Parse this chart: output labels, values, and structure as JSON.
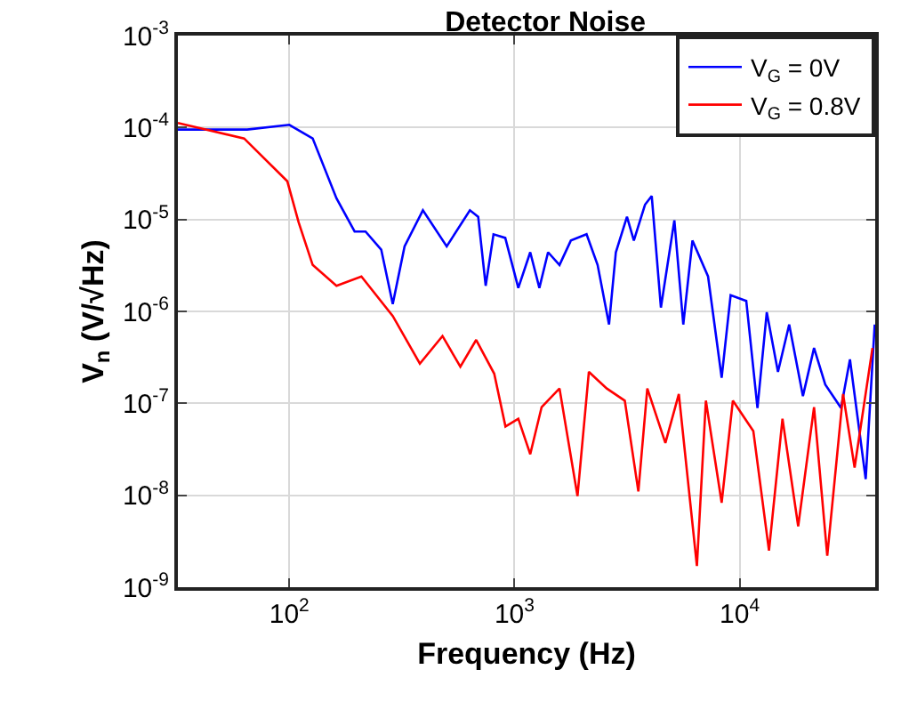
{
  "chart_data": {
    "type": "line",
    "title": "Detector Noise",
    "xlabel": "Frequency (Hz)",
    "ylabel": "V$_{n}$ (V/√Hz)",
    "log": "xy",
    "grid": true,
    "legend": "top right",
    "line_style": "solid",
    "marker": "none",
    "xlim": [
      32,
      40000
    ],
    "ylim": [
      1e-09,
      0.001
    ],
    "xticks": [
      {
        "value": 100,
        "label": "10$^{2}$"
      },
      {
        "value": 1000,
        "label": "10$^{3}$"
      },
      {
        "value": 10000,
        "label": "10$^{4}$"
      }
    ],
    "yticks": [
      {
        "value": 1e-09,
        "label": "10$^{-9}$"
      },
      {
        "value": 1e-08,
        "label": "10$^{-8}$"
      },
      {
        "value": 1e-07,
        "label": "10$^{-7}$"
      },
      {
        "value": 1e-06,
        "label": "10$^{-6}$"
      },
      {
        "value": 1e-05,
        "label": "10$^{-5}$"
      },
      {
        "value": 0.0001,
        "label": "10$^{-4}$"
      },
      {
        "value": 0.001,
        "label": "10$^{-3}$"
      }
    ],
    "series": [
      {
        "name": "V$_{G}$ = 0V",
        "color": "#0000ff",
        "x": [
          32,
          65,
          100,
          127,
          162,
          195,
          218,
          256,
          288,
          325,
          392,
          500,
          634,
          690,
          745,
          807,
          910,
          1040,
          1175,
          1290,
          1410,
          1585,
          1780,
          2090,
          2340,
          2630,
          2820,
          3160,
          3390,
          3800,
          4070,
          4470,
          5130,
          5620,
          6170,
          7240,
          8320,
          9120,
          10700,
          12000,
          13200,
          14800,
          16600,
          19100,
          21400,
          24000,
          28200,
          30900,
          36300,
          39800
        ],
        "values": [
          9.5e-05,
          9.5e-05,
          0.000107,
          7.6e-05,
          1.7e-05,
          7.4e-06,
          7.4e-06,
          4.7e-06,
          1.2e-06,
          5.1e-06,
          1.26e-05,
          5.1e-06,
          1.26e-05,
          1.07e-05,
          1.9e-06,
          6.9e-06,
          6.3e-06,
          1.8e-06,
          4.4e-06,
          1.8e-06,
          4.4e-06,
          3.2e-06,
          5.9e-06,
          6.9e-06,
          3.2e-06,
          7.2e-07,
          4.4e-06,
          1.07e-05,
          5.9e-06,
          1.45e-05,
          1.8e-05,
          1.1e-06,
          9.8e-06,
          7.2e-07,
          5.9e-06,
          2.4e-06,
          1.9e-07,
          1.5e-06,
          1.3e-06,
          8.9e-08,
          9.8e-07,
          2.2e-07,
          7.2e-07,
          1.2e-07,
          4e-07,
          1.6e-07,
          8.9e-08,
          3e-07,
          1.5e-08,
          7.2e-07
        ]
      },
      {
        "name": "V$_{G}$ = 0.8V",
        "color": "#ff0000",
        "x": [
          32,
          63,
          98,
          110,
          127,
          162,
          209,
          288,
          380,
          479,
          575,
          676,
          813,
          912,
          1040,
          1175,
          1320,
          1585,
          1905,
          2140,
          2570,
          3090,
          3550,
          3890,
          4680,
          5370,
          6460,
          7080,
          8320,
          9330,
          11500,
          13500,
          15500,
          18200,
          21400,
          24500,
          28800,
          32400,
          38900
        ],
        "values": [
          0.000112,
          7.6e-05,
          2.6e-05,
          9.3e-06,
          3.2e-06,
          1.9e-06,
          2.4e-06,
          8.9e-07,
          2.7e-07,
          5.4e-07,
          2.5e-07,
          4.9e-07,
          2.1e-07,
          5.6e-08,
          6.8e-08,
          2.8e-08,
          9.1e-08,
          1.45e-07,
          9.8e-09,
          2.2e-07,
          1.45e-07,
          1.07e-07,
          1.1e-08,
          1.45e-07,
          3.7e-08,
          1.26e-07,
          1.7e-09,
          1.07e-07,
          8.3e-09,
          1.07e-07,
          5e-08,
          2.5e-09,
          6.8e-08,
          4.6e-09,
          9.1e-08,
          2.2e-09,
          1.26e-07,
          2e-08,
          4e-07
        ]
      }
    ]
  }
}
